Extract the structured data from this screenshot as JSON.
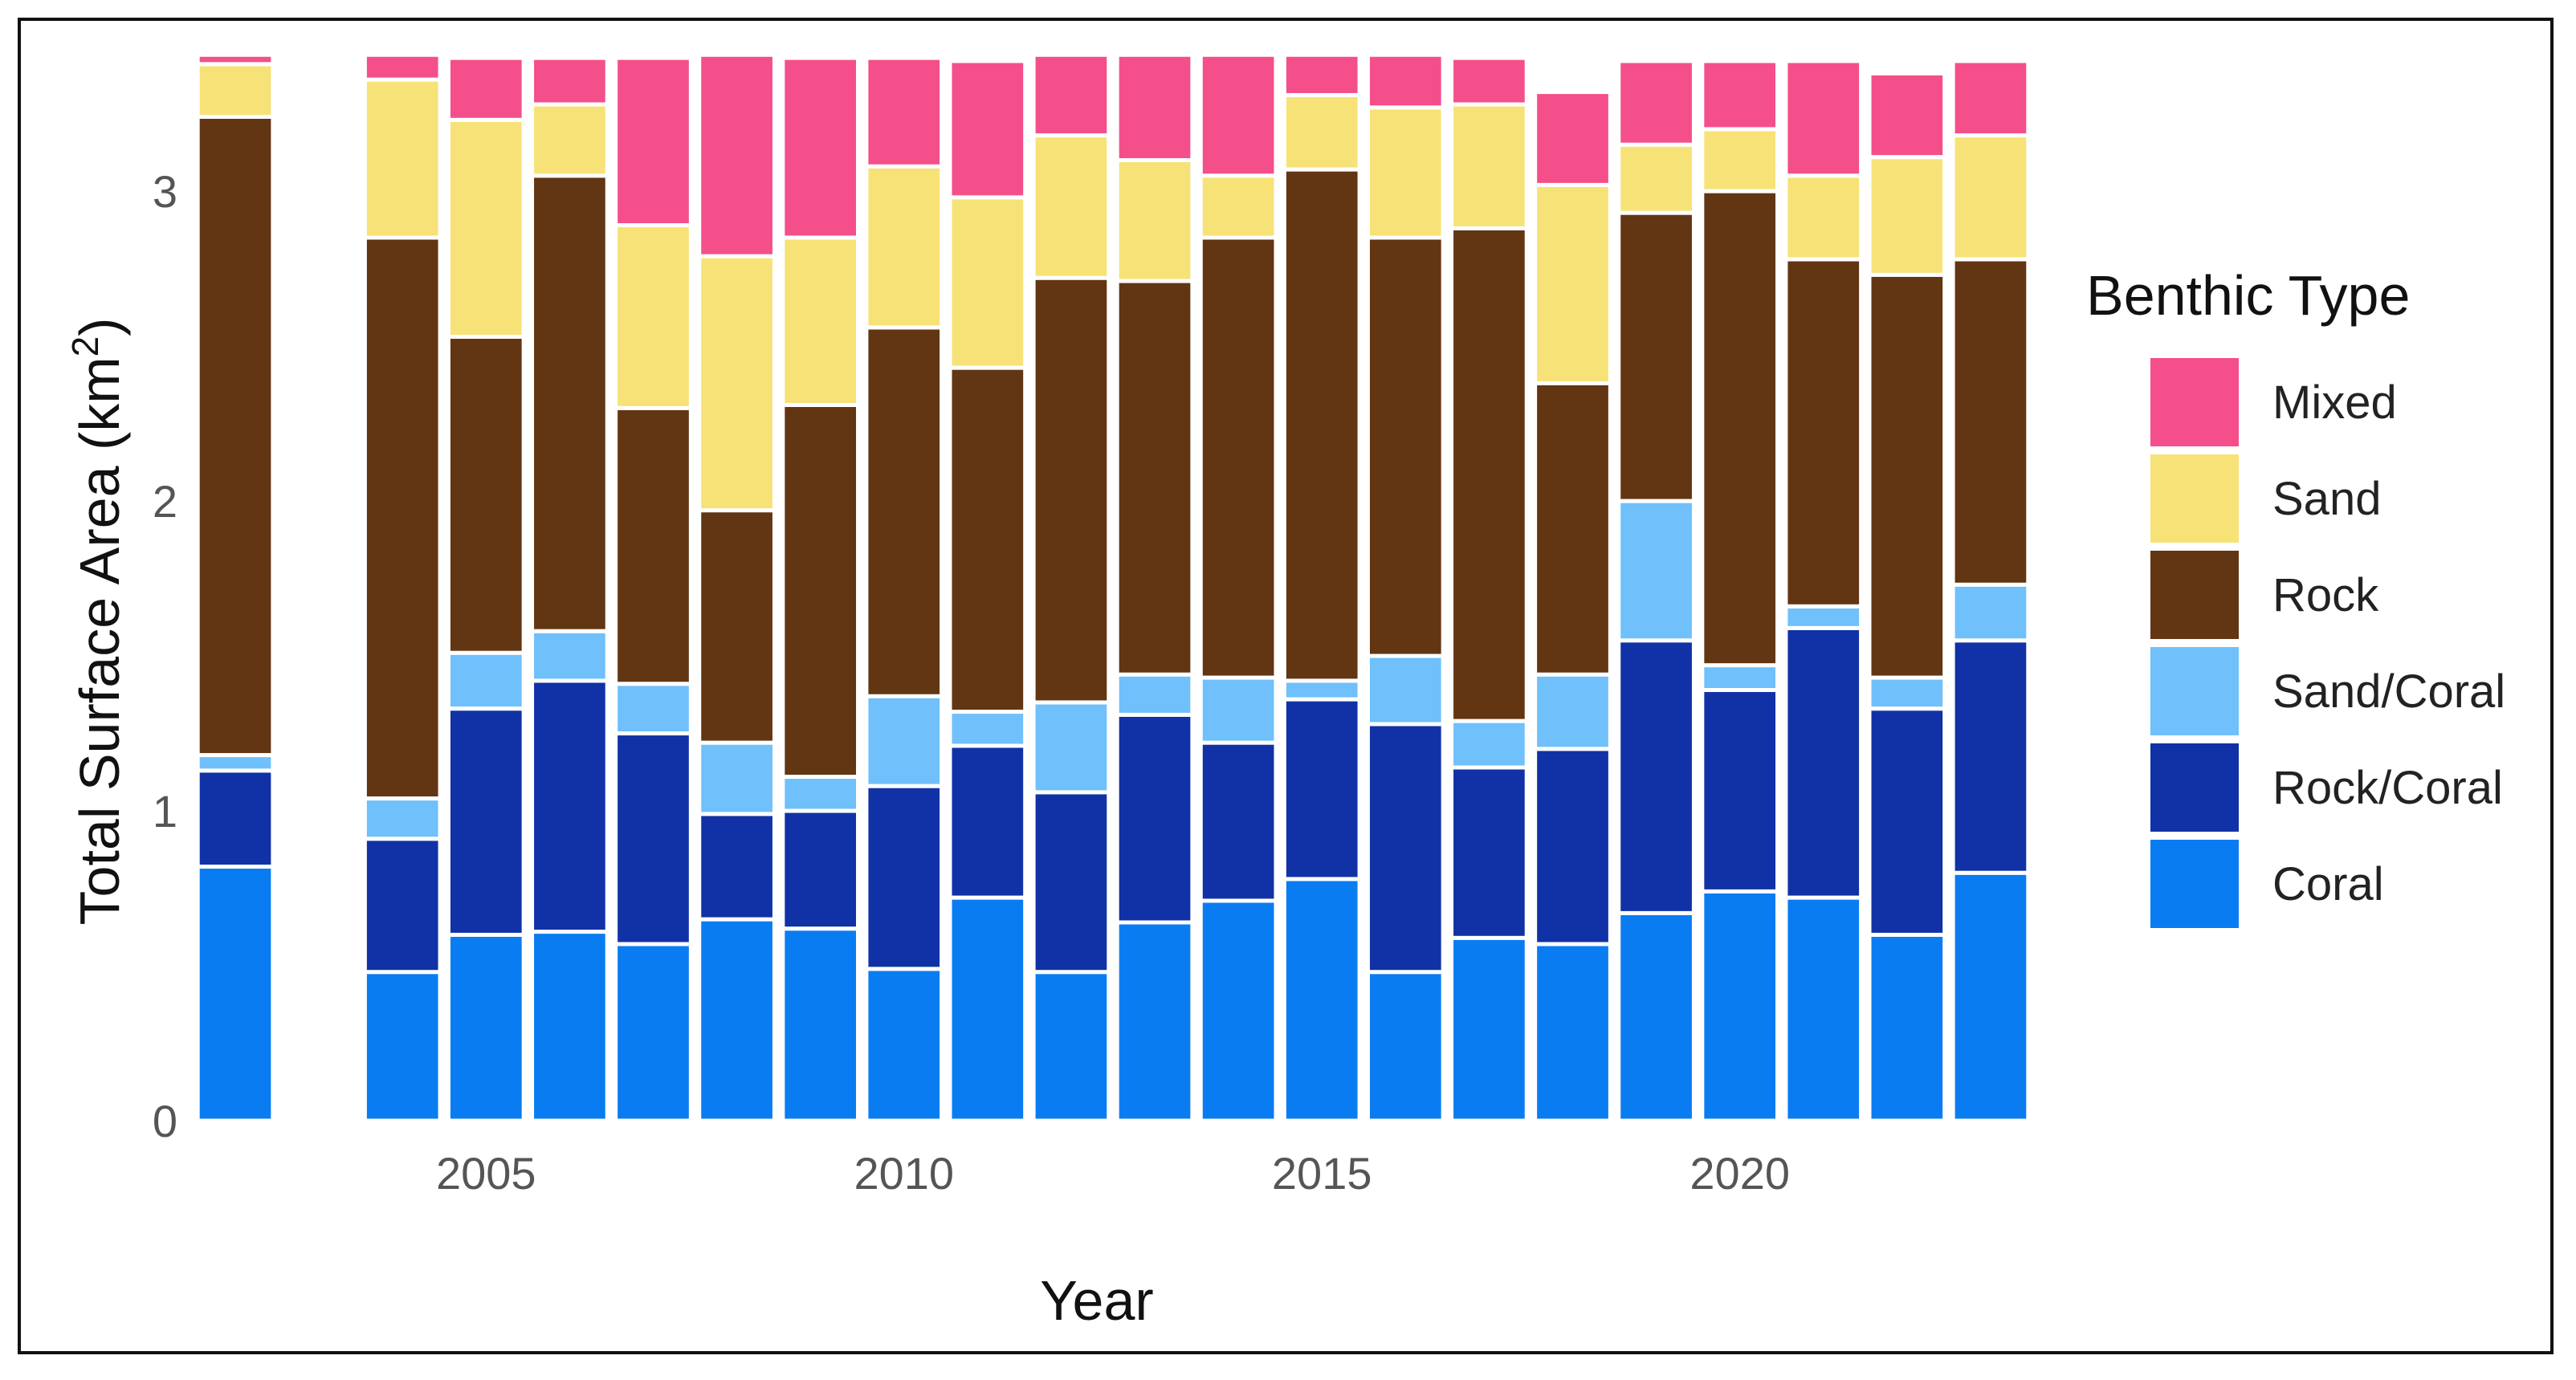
{
  "chart_data": {
    "type": "bar",
    "stacked": true,
    "title": "",
    "xlabel": "Year",
    "ylabel": "Total Surface Area (km²)",
    "ylabel_main": "Total Surface Area (km",
    "ylabel_sup": "2",
    "ylabel_close": ")",
    "ylim": [
      0,
      3.42
    ],
    "xlim": [
      2001.5,
      2023.5
    ],
    "y_ticks": [
      "0",
      "1",
      "2",
      "3"
    ],
    "x_ticks": [
      "2005",
      "2010",
      "2015",
      "2020"
    ],
    "grid": false,
    "legend_title": "Benthic Type",
    "legend_position": "right",
    "legend_order": [
      "Mixed",
      "Sand",
      "Rock",
      "Sand/Coral",
      "Rock/Coral",
      "Coral"
    ],
    "colors": {
      "Coral": "#0a7cf2",
      "Rock/Coral": "#1032a6",
      "Sand/Coral": "#6fc0fb",
      "Rock": "#623513",
      "Sand": "#f7e277",
      "Mixed": "#f44f8a"
    },
    "categories": [
      2002,
      2004,
      2005,
      2006,
      2007,
      2008,
      2009,
      2010,
      2011,
      2012,
      2013,
      2014,
      2015,
      2016,
      2017,
      2018,
      2019,
      2020,
      2021,
      2022,
      2023
    ],
    "series": [
      {
        "name": "Coral",
        "values": [
          0.82,
          0.48,
          0.6,
          0.61,
          0.57,
          0.65,
          0.62,
          0.49,
          0.72,
          0.48,
          0.64,
          0.71,
          0.78,
          0.48,
          0.59,
          0.57,
          0.67,
          0.74,
          0.72,
          0.6,
          0.8
        ]
      },
      {
        "name": "Rock/Coral",
        "values": [
          0.31,
          0.43,
          0.73,
          0.81,
          0.68,
          0.34,
          0.38,
          0.59,
          0.49,
          0.58,
          0.67,
          0.51,
          0.58,
          0.8,
          0.55,
          0.63,
          0.88,
          0.65,
          0.87,
          0.73,
          0.75
        ]
      },
      {
        "name": "Sand/Coral",
        "values": [
          0.05,
          0.13,
          0.18,
          0.16,
          0.16,
          0.23,
          0.11,
          0.29,
          0.11,
          0.29,
          0.13,
          0.21,
          0.06,
          0.22,
          0.15,
          0.24,
          0.45,
          0.08,
          0.07,
          0.1,
          0.18
        ]
      },
      {
        "name": "Rock",
        "values": [
          2.06,
          1.81,
          1.02,
          1.47,
          0.89,
          0.75,
          1.2,
          1.19,
          1.11,
          1.37,
          1.27,
          1.42,
          1.65,
          1.35,
          1.59,
          0.94,
          0.93,
          1.53,
          1.12,
          1.3,
          1.05
        ]
      },
      {
        "name": "Sand",
        "values": [
          0.17,
          0.51,
          0.7,
          0.23,
          0.59,
          0.82,
          0.54,
          0.52,
          0.55,
          0.46,
          0.39,
          0.2,
          0.24,
          0.42,
          0.4,
          0.64,
          0.22,
          0.2,
          0.27,
          0.38,
          0.4
        ]
      },
      {
        "name": "Mixed",
        "values": [
          0.03,
          0.08,
          0.2,
          0.15,
          0.54,
          0.65,
          0.58,
          0.35,
          0.44,
          0.26,
          0.34,
          0.39,
          0.13,
          0.17,
          0.15,
          0.3,
          0.27,
          0.22,
          0.37,
          0.27,
          0.24
        ]
      }
    ]
  }
}
